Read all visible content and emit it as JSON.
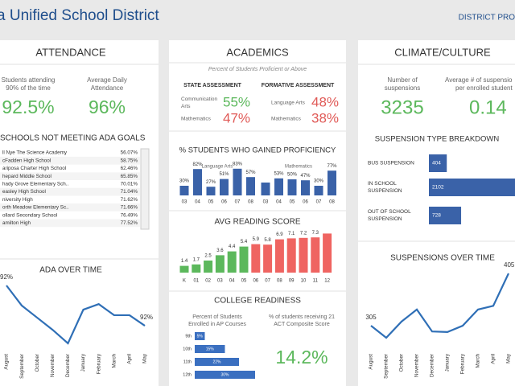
{
  "header": {
    "title": "a Unified School District",
    "nav": "DISTRICT PRO"
  },
  "attendance": {
    "title": "ATTENDANCE",
    "kpis": [
      {
        "label": [
          "Students attending",
          "90% of the time"
        ],
        "value": "92.5%"
      },
      {
        "label": [
          "Average Daily",
          "Attendance"
        ],
        "value": "96%"
      }
    ],
    "schools": {
      "title": "SCHOOLS NOT MEETING ADA GOALS",
      "rows": [
        [
          "ll Nye The Science Academy",
          "56.07%"
        ],
        [
          "cFadden High School",
          "58.75%"
        ],
        [
          "ariposa Charter High School",
          "62.46%"
        ],
        [
          "hepard Middle School",
          "65.85%"
        ],
        [
          "hady Grove Elementary Sch..",
          "70.01%"
        ],
        [
          "easley High School",
          "71.04%"
        ],
        [
          "niversity High",
          "71.62%"
        ],
        [
          "orth Meadow Elementary Sc..",
          "71.66%"
        ],
        [
          "ollard Secondary School",
          "76.49%"
        ],
        [
          "amilton High",
          "77.52%"
        ]
      ]
    },
    "ada_chart": {
      "type": "line",
      "title": "ADA OVER TIME",
      "color": "#2f6fb6",
      "categories": [
        "August",
        "September",
        "October",
        "November",
        "December",
        "January",
        "February",
        "March",
        "April",
        "May"
      ],
      "values": [
        92.4,
        92.0,
        91.76,
        91.52,
        91.25,
        91.92,
        92.03,
        91.81,
        91.81,
        91.6
      ],
      "value_labels": [
        "92%",
        null,
        null,
        null,
        null,
        null,
        null,
        null,
        null,
        "92%"
      ]
    }
  },
  "academics": {
    "title": "ACADEMICS",
    "subtitle": "Percent of Students Proficient or Above",
    "state": {
      "title": "STATE ASSESSMENT",
      "rows": [
        {
          "label": [
            "Communication",
            "Arts"
          ],
          "value": "55%",
          "status": "good"
        },
        {
          "label": [
            "Mathematics"
          ],
          "value": "47%",
          "status": "bad"
        }
      ]
    },
    "formative": {
      "title": "FORMATIVE ASSESSMENT",
      "rows": [
        {
          "label": [
            "Language Arts"
          ],
          "value": "48%",
          "status": "bad"
        },
        {
          "label": [
            "Mathematics"
          ],
          "value": "38%",
          "status": "bad"
        }
      ]
    },
    "gain_chart": {
      "type": "bar",
      "title": "% STUDENTS WHO GAINED PROFICIENCY",
      "color": "#3a62a8",
      "groups": [
        {
          "name": "Language Arts",
          "categories": [
            "03",
            "04",
            "05",
            "06",
            "07",
            "08"
          ],
          "values": [
            30,
            82,
            27,
            51,
            83,
            57
          ],
          "value_labels": [
            "30%",
            "82%",
            "27%",
            "51%",
            "83%",
            "57%"
          ]
        },
        {
          "name": "Mathematics",
          "categories": [
            "03",
            "04",
            "05",
            "06",
            "07",
            "08"
          ],
          "values": [
            40,
            53,
            50,
            47,
            30,
            77
          ],
          "value_labels": [
            null,
            "53%",
            "50%",
            "47%",
            "30%",
            "77%"
          ]
        }
      ]
    },
    "reading_chart": {
      "type": "bar",
      "title": "AVG READING SCORE",
      "categories": [
        "K",
        "01",
        "02",
        "03",
        "04",
        "05",
        "06",
        "07",
        "08",
        "09",
        "10",
        "11",
        "12"
      ],
      "values": [
        1.4,
        1.7,
        2.5,
        3.6,
        4.4,
        5.4,
        5.9,
        5.8,
        6.9,
        7.1,
        7.2,
        7.3,
        8.1
      ],
      "value_labels": [
        "1.4",
        "1.7",
        "2.5",
        "3.6",
        "4.4",
        "5.4",
        "5.9",
        "5.8",
        "6.9",
        "7.1",
        "7.2",
        "7.3",
        null
      ],
      "colors": [
        "#5cb85c",
        "#5cb85c",
        "#5cb85c",
        "#5cb85c",
        "#5cb85c",
        "#5cb85c",
        "#ef6461",
        "#ef6461",
        "#ef6461",
        "#ef6461",
        "#ef6461",
        "#ef6461",
        "#ef6461"
      ]
    },
    "college": {
      "title": "COLLEGE READINESS",
      "ap_chart": {
        "type": "bar",
        "title": [
          "Percent of Students",
          "Enrolled in AP Courses"
        ],
        "color": "#3a6fc0",
        "categories": [
          "9th",
          "10th",
          "11th",
          "12th"
        ],
        "values": [
          5,
          15,
          22,
          30
        ],
        "value_labels": [
          "5%",
          "15%",
          "22%",
          "30%"
        ]
      },
      "act": {
        "label": [
          "% of students receiving 21",
          "ACT Composite Score"
        ],
        "value": "14.2%"
      }
    }
  },
  "climate": {
    "title": "CLIMATE/CULTURE",
    "kpis": [
      {
        "label": [
          "Number of",
          "suspensions"
        ],
        "value": "3235"
      },
      {
        "label": [
          "Average # of suspensio",
          "per enrolled student"
        ],
        "value": "0.14"
      }
    ],
    "type_chart": {
      "type": "bar",
      "title": "SUSPENSION TYPE BREAKDOWN",
      "color": "#3a62a8",
      "categories": [
        [
          "BUS SUSPENSION"
        ],
        [
          "IN SCHOOL",
          "SUSPENSION"
        ],
        [
          "OUT OF SCHOOL",
          "SUSPENSION"
        ]
      ],
      "values": [
        404,
        2102,
        728
      ]
    },
    "time_chart": {
      "type": "line",
      "title": "SUSPENSIONS OVER TIME",
      "color": "#2f6fb6",
      "categories": [
        "August",
        "September",
        "October",
        "November",
        "December",
        "January",
        "February",
        "March",
        "April",
        "May"
      ],
      "values": [
        305,
        282,
        313,
        336,
        294,
        293,
        305,
        336,
        343,
        405
      ],
      "value_labels": [
        "305",
        null,
        null,
        null,
        null,
        null,
        null,
        null,
        null,
        "405"
      ]
    }
  }
}
